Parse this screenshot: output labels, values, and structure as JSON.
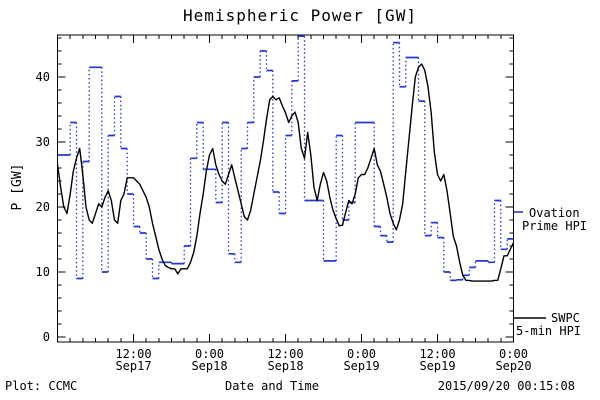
{
  "title": "Hemispheric Power [GW]",
  "colors": {
    "ovation_blue": "#2338cf",
    "swpc_black": "#000000",
    "frame": "#000000",
    "background": "#ffffff"
  },
  "legend": {
    "ovation_line1": "Ovation",
    "ovation_line2": "Prime HPI",
    "swpc_line1": "SWPC",
    "swpc_line2": "5-min HPI"
  },
  "footer": {
    "credit": "Plot: CCMC",
    "xlabel": "Date and Time",
    "timestamp": "2015/09/20 00:15:08"
  },
  "chart_data": {
    "type": "line",
    "title": "Hemispheric Power [GW]",
    "xlabel": "Date and Time",
    "ylabel": "P [GW]",
    "x_range": "2015-09-17 00:00 to 2015-09-20 00:00 UTC",
    "xlim_hours": [
      0,
      72
    ],
    "ylim": [
      0,
      46.5
    ],
    "yticks": [
      0,
      10,
      20,
      30,
      40
    ],
    "y_minor_step": 2,
    "x_major_ticks_hours": [
      12,
      24,
      36,
      48,
      60,
      72
    ],
    "x_minor_step_hours": 2,
    "x_tick_labels": [
      {
        "time": "12:00",
        "date": "Sep17",
        "hour": 12
      },
      {
        "time": "0:00",
        "date": "Sep18",
        "hour": 24
      },
      {
        "time": "12:00",
        "date": "Sep18",
        "hour": 36
      },
      {
        "time": "0:00",
        "date": "Sep19",
        "hour": 48
      },
      {
        "time": "12:00",
        "date": "Sep19",
        "hour": 60
      },
      {
        "time": "0:00",
        "date": "Sep20",
        "hour": 72
      }
    ],
    "grid": false,
    "legend_position": "right-outside",
    "series": [
      {
        "name": "Ovation Prime HPI",
        "style": "step-horizontal-solid-vertical-dotted",
        "color_key": "ovation_blue",
        "step_hours": 1,
        "start_hour": 0,
        "values": [
          28,
          28,
          33,
          9,
          27,
          41.5,
          41.5,
          10,
          31,
          37,
          29,
          22,
          17,
          16,
          12,
          9,
          11.5,
          11.5,
          11.3,
          11.3,
          14,
          27.5,
          33,
          25.8,
          25.8,
          20.7,
          33,
          12.8,
          11.5,
          29,
          33,
          40,
          44,
          41,
          22.3,
          19,
          31,
          39.4,
          46.3,
          21,
          21,
          21,
          11.7,
          11.7,
          31,
          18,
          20.7,
          33,
          33,
          33,
          17,
          15.6,
          14.6,
          45.3,
          38.5,
          43,
          43,
          36.3,
          15.6,
          17.6,
          15.3,
          10,
          8.7,
          8.8,
          9.5,
          10.7,
          11.7,
          11.7,
          11.5,
          21,
          13.5,
          15.1
        ]
      },
      {
        "name": "SWPC 5-min HPI",
        "style": "solid-line",
        "color_key": "swpc_black",
        "sample_step_hours": 0.5,
        "start_hour": 0,
        "values": [
          26.5,
          23,
          20,
          19,
          22,
          25.5,
          27.5,
          29,
          25,
          20,
          18,
          17.5,
          19,
          20.5,
          20,
          21.5,
          22.5,
          21,
          18,
          17.5,
          21,
          22,
          24.5,
          24.5,
          24.5,
          24,
          23.5,
          22.5,
          21.5,
          20,
          17.5,
          15.5,
          13.5,
          12,
          11,
          10.7,
          10.5,
          10.5,
          9.7,
          10.5,
          10.5,
          10.5,
          11.5,
          13,
          15.5,
          19,
          22,
          25.5,
          28,
          29,
          26.5,
          25,
          24,
          23.5,
          25,
          26.5,
          24.5,
          22.5,
          20.5,
          18.5,
          18,
          19.5,
          22,
          24.5,
          27,
          30,
          33.5,
          36.5,
          37,
          36.5,
          36.8,
          35.6,
          34.5,
          33,
          34,
          34.6,
          33,
          29,
          27.5,
          31.5,
          28,
          23,
          21,
          23.5,
          25.3,
          24,
          21.5,
          19.5,
          18.2,
          17.1,
          17.2,
          19.2,
          21,
          20.5,
          22,
          24.5,
          25,
          25,
          26,
          27.5,
          29,
          26.5,
          25.5,
          23.5,
          21.5,
          19,
          17.5,
          16.5,
          18,
          20.5,
          25.5,
          30.5,
          35.5,
          40,
          41.5,
          42,
          41,
          38.5,
          34.5,
          28.5,
          25,
          24,
          25,
          22.5,
          19,
          15.5,
          14,
          11.5,
          9.5,
          8.7,
          8.7,
          8.6,
          8.6,
          8.6,
          8.6,
          8.6,
          8.6,
          8.6,
          8.7,
          8.7,
          10.5,
          12.5,
          12.5,
          13.5,
          14.5
        ]
      }
    ]
  }
}
